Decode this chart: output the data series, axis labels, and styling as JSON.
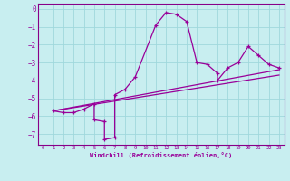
{
  "xlabel": "Windchill (Refroidissement éolien,°C)",
  "bg_color": "#c8eef0",
  "grid_color": "#a0d8dc",
  "line_color": "#990099",
  "spine_color": "#880088",
  "xlim": [
    -0.5,
    23.5
  ],
  "ylim": [
    -7.6,
    0.3
  ],
  "yticks": [
    0,
    -1,
    -2,
    -3,
    -4,
    -5,
    -6,
    -7
  ],
  "xticks": [
    0,
    1,
    2,
    3,
    4,
    5,
    6,
    7,
    8,
    9,
    10,
    11,
    12,
    13,
    14,
    15,
    16,
    17,
    18,
    19,
    20,
    21,
    22,
    23
  ],
  "series1_x": [
    1,
    2,
    3,
    4,
    5,
    5,
    6,
    6,
    7,
    7,
    8,
    9,
    11,
    12,
    13,
    14,
    15,
    16,
    17,
    17,
    18,
    19,
    20,
    21,
    22,
    23
  ],
  "series1_y": [
    -5.7,
    -5.8,
    -5.8,
    -5.6,
    -5.3,
    -6.2,
    -6.3,
    -7.3,
    -7.2,
    -4.8,
    -4.5,
    -3.8,
    -0.9,
    -0.2,
    -0.3,
    -0.7,
    -3.0,
    -3.1,
    -3.6,
    -4.0,
    -3.3,
    -3.0,
    -2.1,
    -2.6,
    -3.1,
    -3.3
  ],
  "series2_x": [
    1,
    23
  ],
  "series2_y": [
    -5.7,
    -3.4
  ],
  "series3_x": [
    1,
    23
  ],
  "series3_y": [
    -5.7,
    -3.7
  ]
}
